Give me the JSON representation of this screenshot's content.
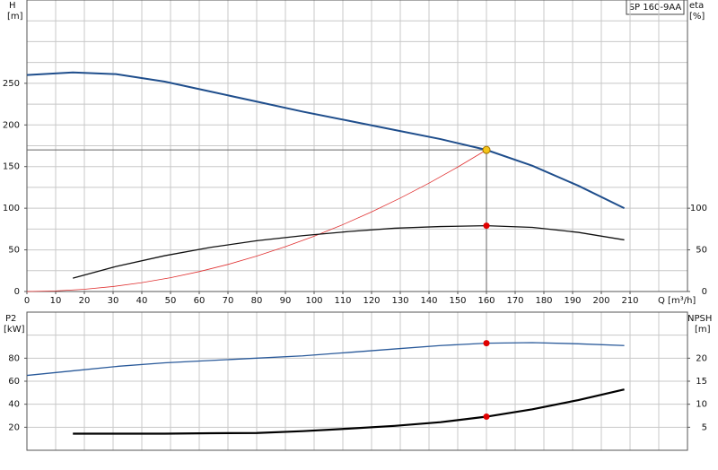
{
  "chart_data": [
    {
      "type": "line",
      "label_box": "SP 160-9AA",
      "ylabel": "H",
      "yunit": "[m]",
      "y2label": "eta",
      "y2unit": "[%]",
      "xlabel": "Q [m³/h]",
      "xlim": [
        0,
        230
      ],
      "xticks": [
        0,
        10,
        20,
        30,
        40,
        50,
        60,
        70,
        80,
        90,
        100,
        110,
        120,
        130,
        140,
        150,
        160,
        170,
        180,
        190,
        200,
        210
      ],
      "xgrid": [
        0,
        10,
        20,
        30,
        40,
        50,
        60,
        70,
        80,
        90,
        100,
        110,
        120,
        130,
        140,
        150,
        160,
        170,
        180,
        190,
        200,
        210,
        220
      ],
      "ylim": [
        0,
        350
      ],
      "yticks": [
        0,
        50,
        100,
        150,
        200,
        250
      ],
      "ygrid": [
        0,
        25,
        50,
        75,
        100,
        125,
        150,
        175,
        200,
        225,
        250,
        275,
        300,
        325,
        350
      ],
      "y2lim": [
        0,
        350
      ],
      "y2ticks": [
        0,
        50,
        100
      ],
      "operating_point": {
        "x": 160,
        "y": 170,
        "color": "#f5c518"
      },
      "series": [
        {
          "color": "#1f4e8c",
          "width": 2,
          "x": [
            0,
            16,
            31,
            48,
            64,
            80,
            96,
            112,
            128,
            144,
            160,
            176,
            192,
            208
          ],
          "values": [
            260,
            263,
            261,
            252,
            240,
            228,
            216,
            205,
            194,
            183,
            170,
            151,
            127,
            100
          ]
        },
        {
          "color": "#e03030",
          "width": 0.8,
          "x": [
            0,
            10,
            20,
            30,
            40,
            50,
            60,
            70,
            80,
            90,
            100,
            110,
            120,
            130,
            140,
            150,
            160
          ],
          "values": [
            0,
            0.7,
            2.7,
            6,
            10.6,
            16.6,
            23.9,
            32.5,
            42.5,
            53.8,
            66.4,
            80.3,
            95.6,
            112.2,
            130.1,
            149.4,
            170
          ]
        },
        {
          "color": "#111111",
          "width": 1.3,
          "axis": "y2",
          "x": [
            16,
            31,
            48,
            64,
            80,
            96,
            112,
            128,
            144,
            160,
            176,
            192,
            208
          ],
          "values": [
            16,
            30,
            43,
            53,
            61,
            67,
            72,
            76,
            78,
            79,
            77,
            71,
            62
          ]
        }
      ],
      "markers": [
        {
          "x": 160,
          "y": 79,
          "color": "#e00000",
          "axis": "y2"
        }
      ]
    },
    {
      "type": "line",
      "ylabel": "P2",
      "yunit": "[kW]",
      "y2label": "NPSH",
      "y2unit": "[m]",
      "xlim": [
        0,
        230
      ],
      "xgrid": [
        0,
        10,
        20,
        30,
        40,
        50,
        60,
        70,
        80,
        90,
        100,
        110,
        120,
        130,
        140,
        150,
        160,
        170,
        180,
        190,
        200,
        210,
        220
      ],
      "ylim": [
        0,
        120
      ],
      "yticks": [
        20,
        40,
        60,
        80
      ],
      "ygrid": [
        0,
        20,
        40,
        60,
        80,
        100,
        120
      ],
      "y2lim": [
        0,
        30
      ],
      "y2ticks": [
        5,
        10,
        15,
        20
      ],
      "series": [
        {
          "color": "#2a5a9a",
          "width": 1.3,
          "x": [
            0,
            16,
            32,
            48,
            64,
            80,
            96,
            112,
            128,
            144,
            160,
            176,
            192,
            208
          ],
          "values": [
            65,
            69,
            73,
            76,
            78,
            80,
            82,
            85,
            88,
            91,
            93,
            93.5,
            92.5,
            91
          ]
        },
        {
          "color": "#000000",
          "width": 2.2,
          "axis": "y2",
          "x": [
            16,
            32,
            48,
            64,
            80,
            96,
            112,
            128,
            144,
            160,
            176,
            192,
            208
          ],
          "values": [
            3.6,
            3.6,
            3.6,
            3.7,
            3.75,
            4.15,
            4.7,
            5.3,
            6.1,
            7.3,
            8.9,
            10.9,
            13.2
          ]
        }
      ],
      "markers": [
        {
          "x": 160,
          "y": 93,
          "color": "#e00000"
        },
        {
          "x": 160,
          "y": 7.3,
          "color": "#e00000",
          "axis": "y2"
        }
      ]
    }
  ]
}
